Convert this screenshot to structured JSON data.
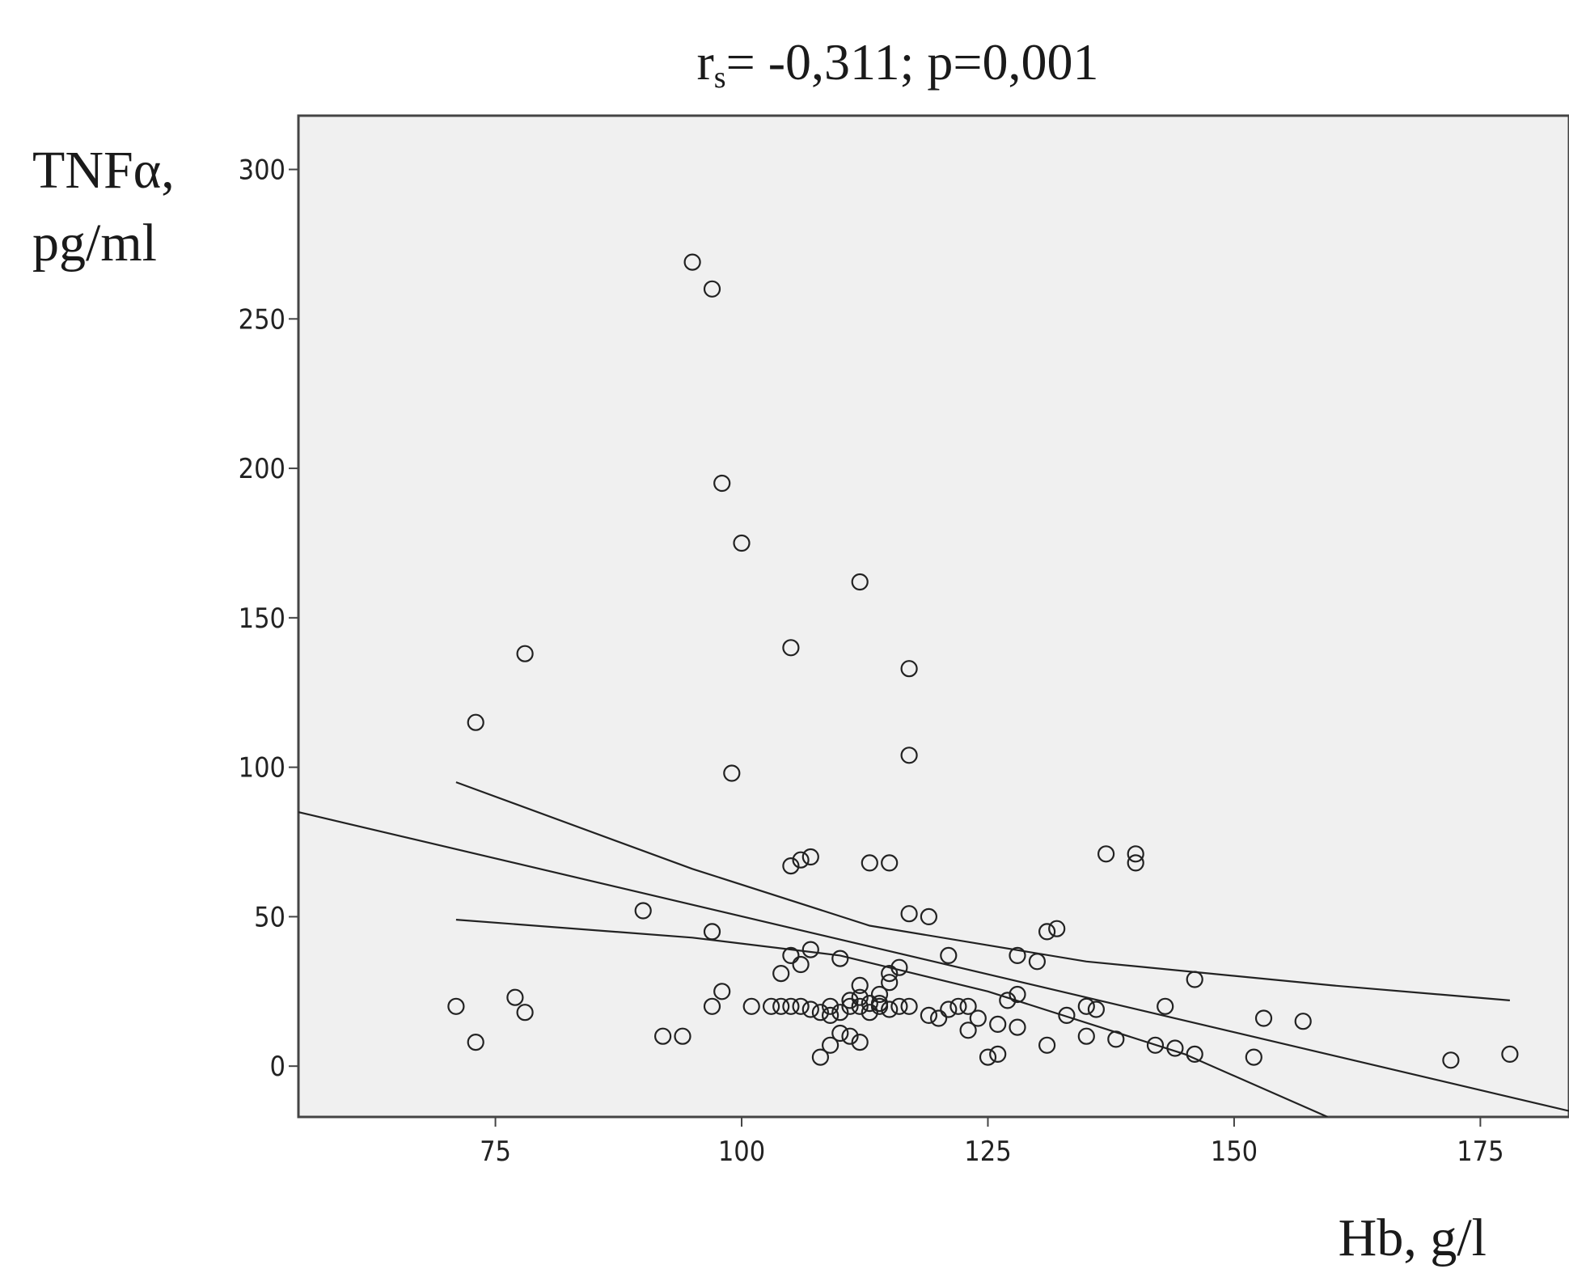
{
  "chart_data": {
    "type": "scatter",
    "title": {
      "prefix": "r",
      "subscript": "s",
      "rest": "= -0,311; p=0,001"
    },
    "xlabel": "Hb, g/l",
    "ylabel_line1": "TNFα,",
    "ylabel_line2": "pg/ml",
    "xlim": [
      55,
      184
    ],
    "ylim": [
      -17,
      318
    ],
    "xticks": [
      75,
      100,
      125,
      150,
      175
    ],
    "yticks": [
      0,
      50,
      100,
      150,
      200,
      250,
      300
    ],
    "grid": false,
    "colors": {
      "plot_background": "#f0f0f0",
      "marker": "#222222",
      "line": "#222222",
      "frame": "#444444"
    },
    "points": [
      [
        95,
        269
      ],
      [
        97,
        260
      ],
      [
        98,
        195
      ],
      [
        100,
        175
      ],
      [
        112,
        162
      ],
      [
        105,
        140
      ],
      [
        117,
        133
      ],
      [
        78,
        138
      ],
      [
        73,
        115
      ],
      [
        117,
        104
      ],
      [
        99,
        98
      ],
      [
        105,
        67
      ],
      [
        106,
        69
      ],
      [
        107,
        70
      ],
      [
        113,
        68
      ],
      [
        115,
        68
      ],
      [
        137,
        71
      ],
      [
        140,
        71
      ],
      [
        140,
        68
      ],
      [
        90,
        52
      ],
      [
        117,
        51
      ],
      [
        119,
        50
      ],
      [
        97,
        45
      ],
      [
        131,
        45
      ],
      [
        132,
        46
      ],
      [
        107,
        39
      ],
      [
        105,
        37
      ],
      [
        110,
        36
      ],
      [
        121,
        37
      ],
      [
        128,
        37
      ],
      [
        130,
        35
      ],
      [
        106,
        34
      ],
      [
        104,
        31
      ],
      [
        115,
        31
      ],
      [
        116,
        33
      ],
      [
        115,
        28
      ],
      [
        146,
        29
      ],
      [
        98,
        25
      ],
      [
        112,
        27
      ],
      [
        114,
        24
      ],
      [
        77,
        23
      ],
      [
        127,
        22
      ],
      [
        128,
        24
      ],
      [
        71,
        20
      ],
      [
        78,
        18
      ],
      [
        97,
        20
      ],
      [
        101,
        20
      ],
      [
        103,
        20
      ],
      [
        104,
        20
      ],
      [
        105,
        20
      ],
      [
        106,
        20
      ],
      [
        107,
        19
      ],
      [
        108,
        18
      ],
      [
        109,
        17
      ],
      [
        109,
        20
      ],
      [
        110,
        18
      ],
      [
        111,
        20
      ],
      [
        111,
        22
      ],
      [
        112,
        20
      ],
      [
        112,
        23
      ],
      [
        113,
        21
      ],
      [
        113,
        18
      ],
      [
        114,
        20
      ],
      [
        114,
        21
      ],
      [
        115,
        19
      ],
      [
        116,
        20
      ],
      [
        117,
        20
      ],
      [
        119,
        17
      ],
      [
        120,
        16
      ],
      [
        121,
        19
      ],
      [
        122,
        20
      ],
      [
        123,
        20
      ],
      [
        124,
        16
      ],
      [
        133,
        17
      ],
      [
        135,
        20
      ],
      [
        136,
        19
      ],
      [
        143,
        20
      ],
      [
        153,
        16
      ],
      [
        157,
        15
      ],
      [
        123,
        12
      ],
      [
        126,
        14
      ],
      [
        128,
        13
      ],
      [
        92,
        10
      ],
      [
        94,
        10
      ],
      [
        111,
        10
      ],
      [
        110,
        11
      ],
      [
        109,
        7
      ],
      [
        112,
        8
      ],
      [
        108,
        3
      ],
      [
        73,
        8
      ],
      [
        131,
        7
      ],
      [
        135,
        10
      ],
      [
        138,
        9
      ],
      [
        142,
        7
      ],
      [
        144,
        6
      ],
      [
        146,
        4
      ],
      [
        125,
        3
      ],
      [
        126,
        4
      ],
      [
        152,
        3
      ],
      [
        172,
        2
      ],
      [
        178,
        4
      ]
    ],
    "fit_line": [
      [
        55,
        85
      ],
      [
        184,
        -15
      ]
    ],
    "ci_upper": [
      [
        71,
        95
      ],
      [
        95,
        66
      ],
      [
        113,
        47
      ],
      [
        135,
        35
      ],
      [
        160,
        27
      ],
      [
        178,
        22
      ]
    ],
    "ci_lower": [
      [
        71,
        49
      ],
      [
        95,
        43
      ],
      [
        110,
        37
      ],
      [
        125,
        25
      ],
      [
        145,
        4
      ],
      [
        159.5,
        -17
      ]
    ]
  }
}
